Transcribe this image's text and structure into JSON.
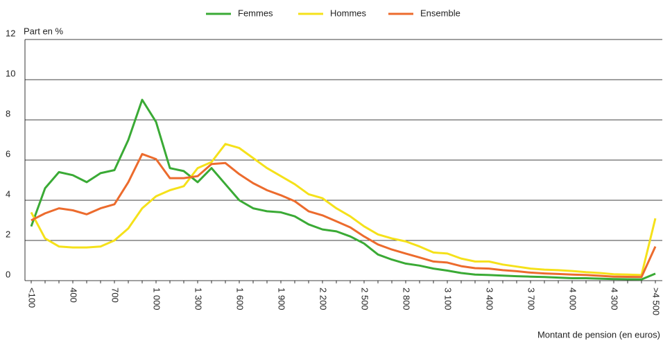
{
  "chart_data": {
    "type": "line",
    "y_label": "Part en %",
    "x_label": "Montant de pension (en euros)",
    "categories": [
      "<100",
      null,
      null,
      "400",
      null,
      null,
      "700",
      null,
      null,
      "1 000",
      null,
      null,
      "1 300",
      null,
      null,
      "1 600",
      null,
      null,
      "1 900",
      null,
      null,
      "2 200",
      null,
      null,
      "2 500",
      null,
      null,
      "2 800",
      null,
      null,
      "3 100",
      null,
      null,
      "3 400",
      null,
      null,
      "3 700",
      null,
      null,
      "4 000",
      null,
      null,
      "4 300",
      null,
      null,
      ">4 500"
    ],
    "series": [
      {
        "name": "Femmes",
        "color": "#3aaa35",
        "values": [
          2.7,
          4.6,
          5.4,
          5.25,
          4.9,
          5.35,
          5.5,
          7.0,
          9.0,
          7.9,
          5.6,
          5.45,
          4.9,
          5.6,
          4.8,
          4.0,
          3.6,
          3.45,
          3.4,
          3.2,
          2.8,
          2.55,
          2.45,
          2.2,
          1.85,
          1.3,
          1.05,
          0.85,
          0.75,
          0.6,
          0.5,
          0.38,
          0.3,
          0.28,
          0.25,
          0.22,
          0.2,
          0.18,
          0.15,
          0.12,
          0.12,
          0.1,
          0.08,
          0.07,
          0.06,
          0.35
        ]
      },
      {
        "name": "Hommes",
        "color": "#f5e11a",
        "values": [
          3.4,
          2.1,
          1.7,
          1.65,
          1.65,
          1.7,
          2.0,
          2.6,
          3.6,
          4.2,
          4.5,
          4.7,
          5.6,
          5.9,
          6.8,
          6.6,
          6.1,
          5.6,
          5.2,
          4.8,
          4.3,
          4.1,
          3.6,
          3.2,
          2.7,
          2.3,
          2.1,
          1.95,
          1.7,
          1.4,
          1.35,
          1.1,
          0.95,
          0.95,
          0.8,
          0.7,
          0.6,
          0.55,
          0.52,
          0.48,
          0.42,
          0.38,
          0.32,
          0.3,
          0.28,
          3.1
        ]
      },
      {
        "name": "Ensemble",
        "color": "#ec6b2d",
        "values": [
          3.0,
          3.35,
          3.6,
          3.5,
          3.3,
          3.6,
          3.8,
          4.9,
          6.3,
          6.05,
          5.1,
          5.1,
          5.2,
          5.8,
          5.85,
          5.3,
          4.85,
          4.5,
          4.25,
          3.95,
          3.45,
          3.25,
          2.95,
          2.65,
          2.2,
          1.8,
          1.55,
          1.35,
          1.15,
          0.95,
          0.9,
          0.72,
          0.62,
          0.6,
          0.52,
          0.47,
          0.4,
          0.36,
          0.33,
          0.3,
          0.28,
          0.24,
          0.2,
          0.19,
          0.18,
          1.7
        ]
      }
    ],
    "ylim": [
      0,
      12
    ],
    "yticks": [
      0,
      2,
      4,
      6,
      8,
      10,
      12
    ],
    "grid": true,
    "legend": "top"
  }
}
